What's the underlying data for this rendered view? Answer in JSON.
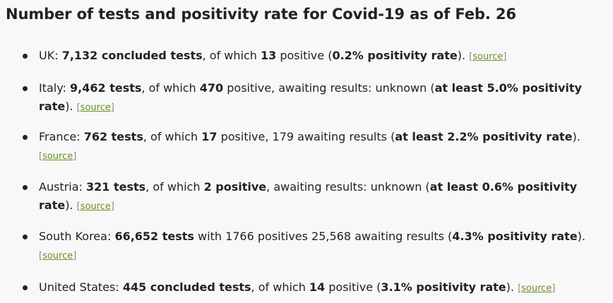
{
  "title": "Number of tests and positivity rate for Covid-19 as of Feb. 26",
  "source_label": "source",
  "items": [
    {
      "country": "UK:",
      "tests": "7,132 concluded tests",
      "t1": ", of which ",
      "positive": "13",
      "t2": " positive (",
      "rate": "0.2% positivity rate",
      "t3": ")."
    },
    {
      "country": "Italy:",
      "tests": "9,462 tests",
      "t1": ", of which ",
      "positive": "470",
      "t2": " positive, awaiting results: unknown (",
      "rate": "at least 5.0% positivity rate",
      "t3": ")."
    },
    {
      "country": "France:",
      "tests": "762 tests",
      "t1": ", of which ",
      "positive": "17",
      "t2": " positive, 179 awaiting results (",
      "rate": "at least 2.2% positivity rate",
      "t3": ")."
    },
    {
      "country": "Austria:",
      "tests": "321 tests",
      "t1": ", of which ",
      "positive": "2 positive",
      "t2": ", awaiting results: unknown (",
      "rate": "at least 0.6% positivity rate",
      "t3": ")."
    },
    {
      "country": "South Korea:",
      "tests": "66,652 tests",
      "t1": " with 1766 positives 25,568 awaiting results (",
      "positive": "",
      "t2": "",
      "rate": "4.3% positivity rate",
      "t3": ")."
    },
    {
      "country": "United States:",
      "tests": "445 concluded tests",
      "t1": ", of which ",
      "positive": "14",
      "t2": " positive (",
      "rate": "3.1% positivity rate",
      "t3": ")."
    }
  ]
}
